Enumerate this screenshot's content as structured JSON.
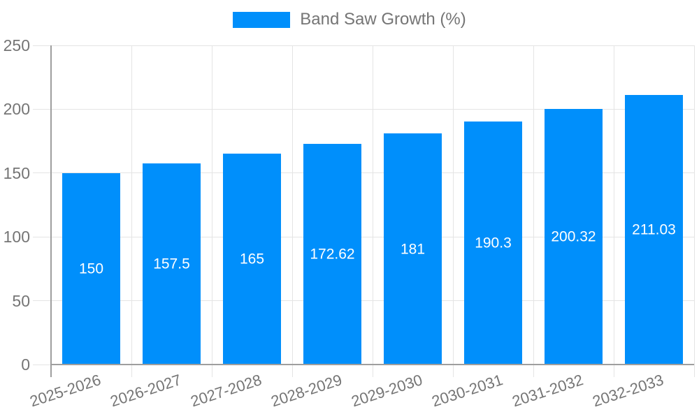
{
  "legend": {
    "label": "Band Saw Growth (%)"
  },
  "chart_data": {
    "type": "bar",
    "title": "Band Saw Growth (%)",
    "categories": [
      "2025-2026",
      "2026-2027",
      "2027-2028",
      "2028-2029",
      "2029-2030",
      "2030-2031",
      "2031-2032",
      "2032-2033"
    ],
    "values": [
      150,
      157.5,
      165,
      172.62,
      181,
      190.3,
      200.32,
      211.03
    ],
    "data_labels": [
      "150",
      "157.5",
      "165",
      "172.62",
      "181",
      "190.3",
      "200.32",
      "211.03"
    ],
    "xlabel": "",
    "ylabel": "",
    "ylim": [
      0,
      250
    ],
    "ytick_step": 50,
    "yticks": [
      0,
      50,
      100,
      150,
      200,
      250
    ],
    "grid": true,
    "legend_position": "top",
    "bar_color": "#008FFB",
    "data_label_color": "#ffffff",
    "axis_text_color": "#757575",
    "axis_line_color": "#9e9e9e",
    "gridline_color": "#e4e4e4"
  }
}
